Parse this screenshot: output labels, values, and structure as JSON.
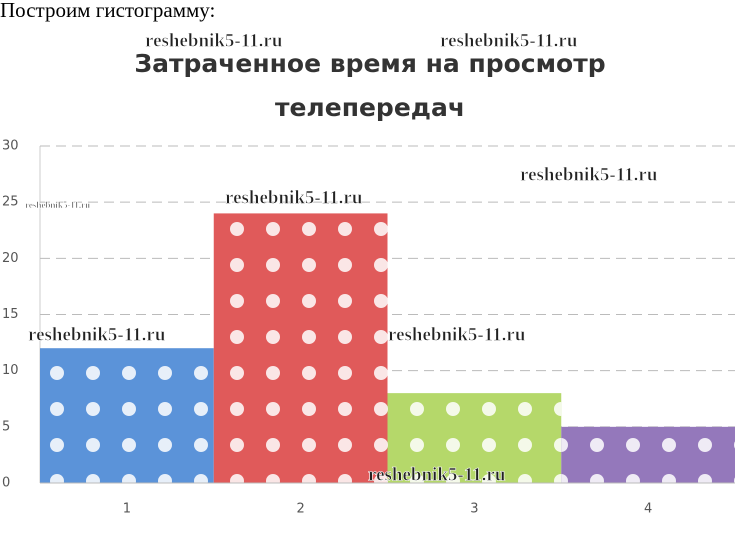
{
  "heading": "Построим гистограмму:",
  "chart_data": {
    "type": "bar",
    "title": "Затраченное время на просмотр телепередач",
    "categories": [
      "1",
      "2",
      "3",
      "4"
    ],
    "values": [
      12,
      24,
      8,
      5
    ],
    "colors": [
      "#5b93d9",
      "#e05a5a",
      "#b5d86a",
      "#9478bb"
    ],
    "ylim": [
      0,
      30
    ],
    "yticks": [
      0,
      5,
      10,
      15,
      20,
      25,
      30
    ],
    "grid": true
  },
  "watermarks": [
    "reshebnik5-11.ru",
    "reshebnik5-11.ru",
    "reshebnik5-11.ru",
    "reshebnik5-11.ru",
    "reshebnik5-11.ru",
    "reshebnik5-11.ru",
    "reshebnik5-11.ru",
    "reshebnik5-11.ru"
  ]
}
